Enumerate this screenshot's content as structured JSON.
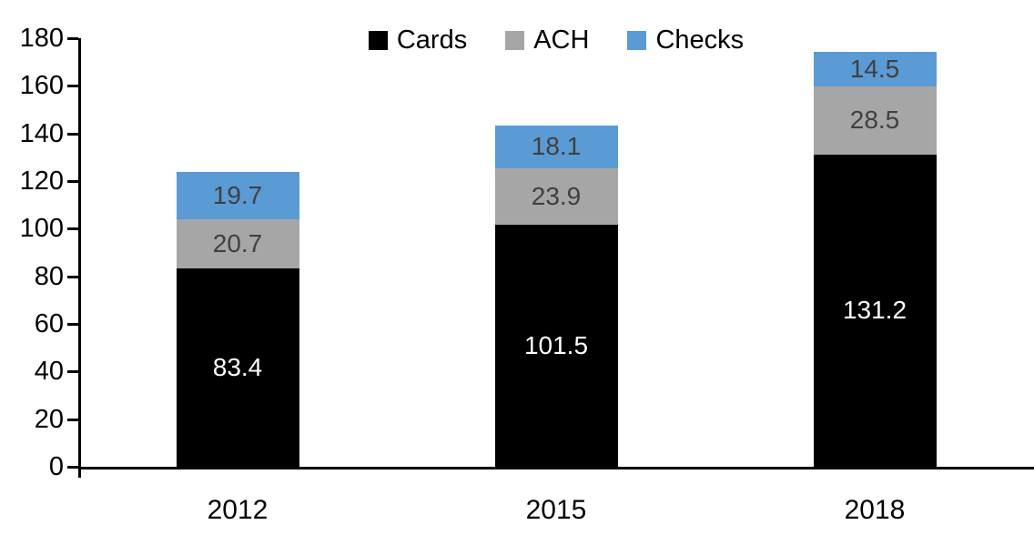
{
  "chart_data": {
    "type": "bar",
    "stacked": true,
    "title": "",
    "categories": [
      "2012",
      "2015",
      "2018"
    ],
    "series": [
      {
        "name": "Cards",
        "color": "#000000",
        "label_color": "#ffffff",
        "values": [
          83.4,
          101.5,
          131.2
        ]
      },
      {
        "name": "ACH",
        "color": "#a6a6a6",
        "label_color": "#404040",
        "values": [
          20.7,
          23.9,
          28.5
        ]
      },
      {
        "name": "Checks",
        "color": "#5b9bd5",
        "label_color": "#404040",
        "values": [
          19.7,
          18.1,
          14.5
        ]
      }
    ],
    "totals": [
      123.8,
      143.5,
      174.2
    ],
    "ylim": [
      0,
      180
    ],
    "yticks": [
      0,
      20,
      40,
      60,
      80,
      100,
      120,
      140,
      160,
      180
    ],
    "xlabel": "",
    "ylabel": "",
    "grid": false,
    "legend_position": "top",
    "axis_color": "#000000"
  }
}
